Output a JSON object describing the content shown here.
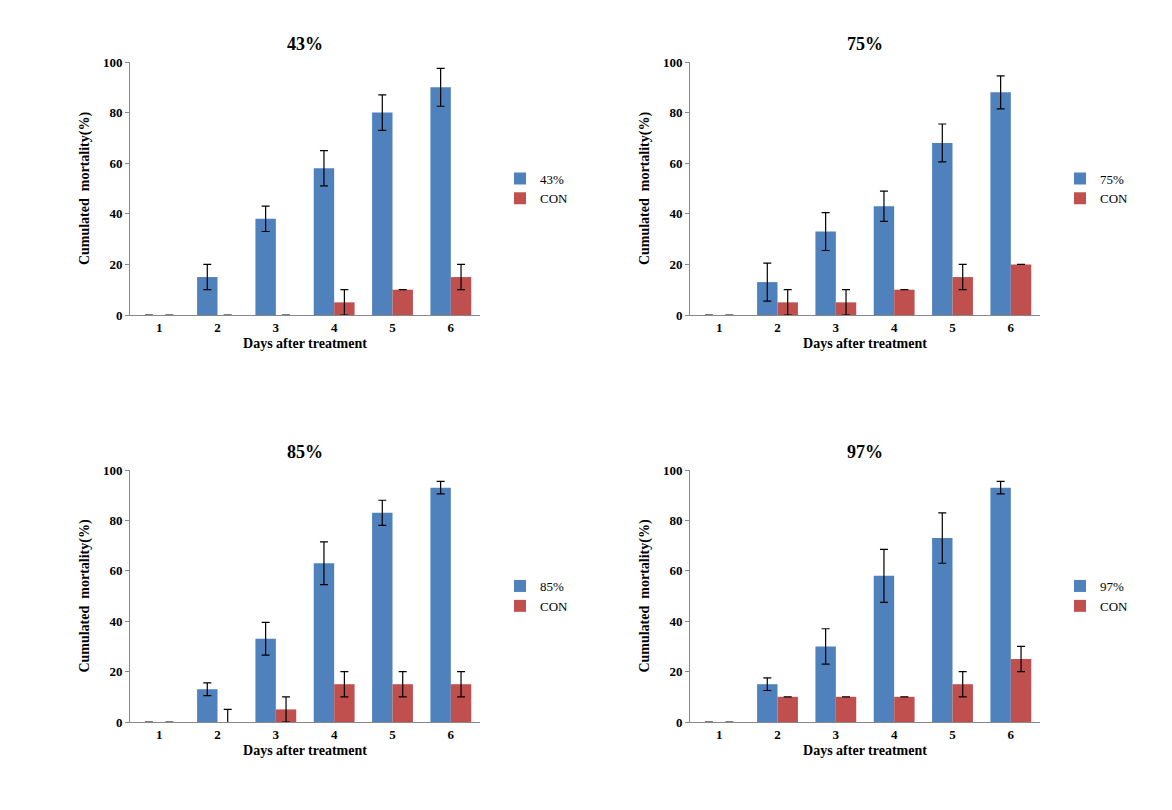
{
  "chart_data": [
    {
      "type": "bar",
      "title": "43%",
      "x_label": "Days after treatment",
      "y_label": "Cumulated  mortality(%)",
      "categories": [
        "1",
        "2",
        "3",
        "4",
        "5",
        "6"
      ],
      "series": [
        {
          "name": "43%",
          "color": "#4F81BD",
          "values": [
            0,
            15,
            38,
            58,
            80,
            90
          ],
          "errors": [
            0,
            5,
            5,
            7,
            7,
            7.5
          ]
        },
        {
          "name": "CON",
          "color": "#C0504D",
          "values": [
            0,
            0,
            0,
            5,
            10,
            15
          ],
          "errors": [
            0,
            0,
            0,
            5,
            0,
            5
          ]
        }
      ],
      "ylim": [
        0,
        100
      ],
      "yticks": [
        0,
        20,
        40,
        60,
        80,
        100
      ],
      "legend": "right",
      "grid": false
    },
    {
      "type": "bar",
      "title": "75%",
      "x_label": "Days after treatment",
      "y_label": "Cumulated  mortality(%)",
      "categories": [
        "1",
        "2",
        "3",
        "4",
        "5",
        "6"
      ],
      "series": [
        {
          "name": "75%",
          "color": "#4F81BD",
          "values": [
            0,
            13,
            33,
            43,
            68,
            88
          ],
          "errors": [
            0,
            7.5,
            7.5,
            6,
            7.5,
            6.5
          ]
        },
        {
          "name": "CON",
          "color": "#C0504D",
          "values": [
            0,
            5,
            5,
            10,
            15,
            20
          ],
          "errors": [
            0,
            5,
            5,
            0,
            5,
            0
          ]
        }
      ],
      "ylim": [
        0,
        100
      ],
      "yticks": [
        0,
        20,
        40,
        60,
        80,
        100
      ],
      "legend": "right",
      "grid": false
    },
    {
      "type": "bar",
      "title": "85%",
      "x_label": "Days after treatment",
      "y_label": "Cumulated  mortality(%)",
      "categories": [
        "1",
        "2",
        "3",
        "4",
        "5",
        "6"
      ],
      "series": [
        {
          "name": "85%",
          "color": "#4F81BD",
          "values": [
            0,
            13,
            33,
            63,
            83,
            93
          ],
          "errors": [
            0,
            2.5,
            6.5,
            8.5,
            5,
            2.5
          ]
        },
        {
          "name": "CON",
          "color": "#C0504D",
          "values": [
            0,
            0,
            5,
            15,
            15,
            15
          ],
          "errors": [
            0,
            5,
            5,
            5,
            5,
            5
          ]
        }
      ],
      "ylim": [
        0,
        100
      ],
      "yticks": [
        0,
        20,
        40,
        60,
        80,
        100
      ],
      "legend": "right",
      "grid": false
    },
    {
      "type": "bar",
      "title": "97%",
      "x_label": "Days after treatment",
      "y_label": "Cumulated  mortality(%)",
      "categories": [
        "1",
        "2",
        "3",
        "4",
        "5",
        "6"
      ],
      "series": [
        {
          "name": "97%",
          "color": "#4F81BD",
          "values": [
            0,
            15,
            30,
            58,
            73,
            93
          ],
          "errors": [
            0,
            2.5,
            7,
            10.5,
            10,
            2.5
          ]
        },
        {
          "name": "CON",
          "color": "#C0504D",
          "values": [
            0,
            10,
            10,
            10,
            15,
            25
          ],
          "errors": [
            0,
            0,
            0,
            0,
            5,
            5
          ]
        }
      ],
      "ylim": [
        0,
        100
      ],
      "yticks": [
        0,
        20,
        40,
        60,
        80,
        100
      ],
      "legend": "right",
      "grid": false
    }
  ]
}
